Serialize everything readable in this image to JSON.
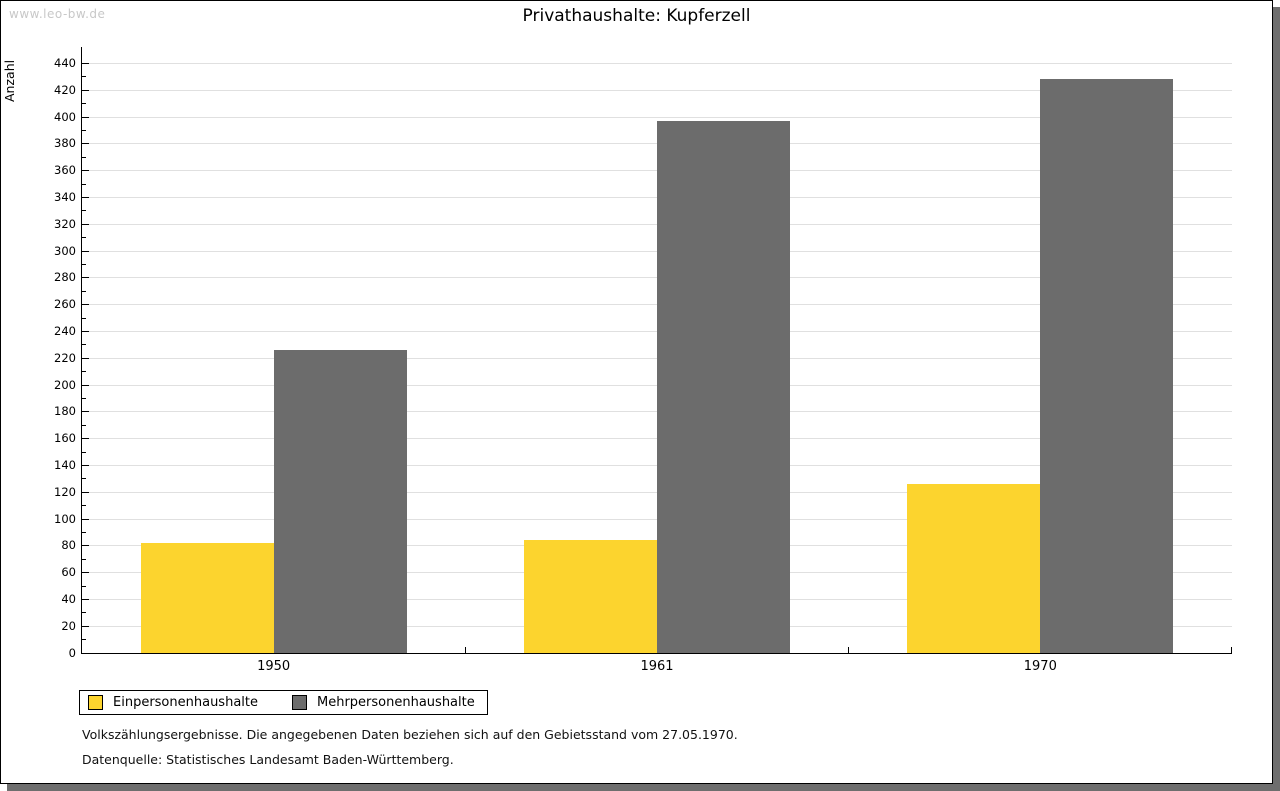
{
  "page": {
    "watermark": "www.leo-bw.de",
    "title": "Privathaushalte: Kupferzell"
  },
  "chart_data": {
    "type": "bar",
    "title": "Privathaushalte: Kupferzell",
    "ylabel": "Anzahl",
    "xlabel": "",
    "categories": [
      "1950",
      "1961",
      "1970"
    ],
    "series": [
      {
        "name": "Einpersonenhaushalte",
        "color": "#FCD42E",
        "values": [
          82,
          84,
          126
        ]
      },
      {
        "name": "Mehrpersonenhaushalte",
        "color": "#6C6C6C",
        "values": [
          226,
          397,
          428
        ]
      }
    ],
    "ylim": [
      0,
      440
    ],
    "ytick_step": 20,
    "minor_tick_step": 10,
    "yticks": [
      0,
      20,
      40,
      60,
      80,
      100,
      120,
      140,
      160,
      180,
      200,
      220,
      240,
      260,
      280,
      300,
      320,
      340,
      360,
      380,
      400,
      420,
      440
    ],
    "grid": true,
    "legend_position": "bottom-left"
  },
  "footer": {
    "line1": "Volkszählungsergebnisse. Die angegebenen Daten beziehen sich auf den Gebietsstand vom 27.05.1970.",
    "line2": "Datenquelle: Statistisches Landesamt Baden-Württemberg."
  },
  "colors": {
    "series_1": "#FCD42E",
    "series_2": "#6C6C6C",
    "gridline": "#E0E0E0",
    "axis": "#000000",
    "shadow": "#6E6E6E",
    "watermark": "#C8C8C8",
    "background": "#FFFFFF"
  }
}
